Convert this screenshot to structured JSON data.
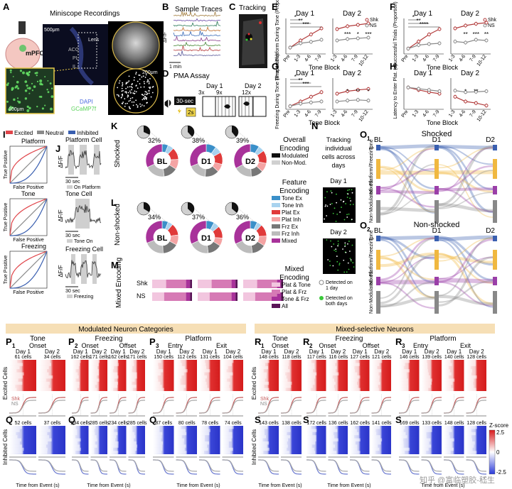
{
  "panel_A": {
    "letter": "A",
    "title": "Miniscope Recordings",
    "scale_top": "500μm",
    "scale_bottom": "100μm",
    "scale_right": "200μm",
    "mpfc": "mPFC",
    "lens": "Lens",
    "acc": "ACC",
    "pl": "PL",
    "il": "IL",
    "dapi": "DAPI",
    "gcamp": "GCaMP7f"
  },
  "panel_B": {
    "letter": "B",
    "title": "Sample Traces",
    "ylabel": "ΔF/F",
    "scale": "1 min",
    "trace_colors": [
      "#a07a3a",
      "#6b4aa8",
      "#2e7d5b",
      "#c06f2c",
      "#3b6cb7",
      "#8a3f8f",
      "#4a8a3a",
      "#b53a3a",
      "#5a5a9a"
    ]
  },
  "panel_C": {
    "letter": "C",
    "title": "Tracking"
  },
  "panel_D": {
    "letter": "D",
    "title": "PMA Assay",
    "day1": "Day 1",
    "day2": "Day 2",
    "sec30": "30-sec",
    "sec2": "2s",
    "rep1": "3x",
    "rep2": "9x",
    "rep3": "12x"
  },
  "line_panels": {
    "day1": "Day 1",
    "day2": "Day 2",
    "xlabel": "Tone Block",
    "d1_ticks": [
      "Pre",
      "1-3",
      "4-6",
      "7-9"
    ],
    "d2_ticks": [
      "1-3",
      "4-6",
      "7-9",
      "10-12"
    ],
    "legend_shk": "Shk",
    "legend_ns": "NS",
    "shk_color": "#b23a3a",
    "ns_color": "#8a8a8a",
    "E": {
      "letter": "E",
      "ylabel": "Time on Platform During Tone (Proportion)",
      "d1_shk": [
        0.18,
        0.38,
        0.55,
        0.72
      ],
      "d1_ns": [
        0.18,
        0.3,
        0.34,
        0.4
      ],
      "d2_shk": [
        0.7,
        0.78,
        0.82,
        0.86
      ],
      "d2_ns": [
        0.38,
        0.42,
        0.44,
        0.46
      ],
      "sig_d1": [
        "*",
        "**",
        "***"
      ],
      "sig_d2": [
        "***",
        "*",
        "***"
      ]
    },
    "F": {
      "letter": "F",
      "ylabel": "Successful Trials (Proportion)",
      "d1_shk": [
        0.15,
        0.35,
        0.55,
        0.7
      ],
      "d1_ns": [
        0.15,
        0.25,
        0.28,
        0.3
      ],
      "d2_shk": [
        0.72,
        0.8,
        0.85,
        0.88
      ],
      "d2_ns": [
        0.35,
        0.32,
        0.4,
        0.38
      ],
      "sig_d1": [
        "*",
        "**",
        "****"
      ],
      "sig_d2": [
        "**",
        "***",
        "**"
      ]
    },
    "G": {
      "letter": "G",
      "ylabel": "Freezing During Tone (Proportion)",
      "d1_shk": [
        0.1,
        0.25,
        0.4,
        0.55
      ],
      "d1_ns": [
        0.1,
        0.18,
        0.22,
        0.25
      ],
      "d2_shk": [
        0.5,
        0.58,
        0.62,
        0.65
      ],
      "d2_ns": [
        0.25,
        0.28,
        0.3,
        0.28
      ],
      "sig_d1": [
        "*",
        "**",
        "***"
      ],
      "sig_d2": [
        "*",
        "**",
        "*"
      ]
    },
    "H": {
      "letter": "H",
      "ylabel": "Latency to Enter Plat. (s)",
      "d1_shk": [
        0.7,
        0.62,
        0.55,
        0.5
      ],
      "d1_ns": [
        0.7,
        0.66,
        0.62,
        0.58
      ],
      "d2_shk": [
        0.4,
        0.25,
        0.2,
        0.12
      ],
      "d2_ns": [
        0.6,
        0.55,
        0.56,
        0.58
      ],
      "sig_d1": [],
      "sig_d2": [
        "*",
        "**"
      ]
    }
  },
  "panel_I": {
    "letter": "I",
    "legend": [
      "Excited",
      "Neutral",
      "Inhibited"
    ],
    "colors": [
      "#e0454a",
      "#8a8a8a",
      "#3a5fb0"
    ],
    "subtitles": [
      "Platform",
      "Tone",
      "Freezing"
    ],
    "ylabel": "True Positive",
    "xlabel": "False Positive"
  },
  "panel_J": {
    "letter": "J",
    "titles": [
      "Platform Cell",
      "Tone Cell",
      "Freezing Cell"
    ],
    "ylabel": "ΔF/F",
    "scale": "30 sec",
    "legend": [
      "On Platform",
      "Tone On",
      "Freezing"
    ]
  },
  "panel_K": {
    "letter": "K",
    "row_label": "Shocked",
    "pcts": [
      "32%",
      "38%",
      "39%"
    ],
    "days": [
      "BL",
      "D1",
      "D2"
    ]
  },
  "panel_L": {
    "letter": "L",
    "row_label": "Non-shocked",
    "pcts": [
      "34%",
      "37%",
      "36%"
    ],
    "days": [
      "BL",
      "D1",
      "D2"
    ]
  },
  "legend_overall": {
    "title": "Overall Encoding",
    "items": [
      "Modulated",
      "Non-Mod."
    ],
    "colors": [
      "#111111",
      "#d0d0d0"
    ]
  },
  "legend_feature": {
    "title": "Feature Encoding",
    "items": [
      "Tone Ex",
      "Tone Inh",
      "Plat Ex",
      "Plat Inh",
      "Frz Ex",
      "Frz Inh",
      "Mixed"
    ],
    "colors": [
      "#3a8fc9",
      "#a8d3ef",
      "#e03a3a",
      "#f4a3a3",
      "#777777",
      "#bcbcbc",
      "#a8329a"
    ]
  },
  "panel_M": {
    "letter": "M",
    "ylabel": "Mixed Encoding",
    "rows": [
      "Shk",
      "NS"
    ],
    "legend_title": "Mixed Encoding",
    "items": [
      "Plat & Tone",
      "Plat & Frz",
      "Tone & Frz",
      "All"
    ],
    "colors": [
      "#f2c6df",
      "#d67ab5",
      "#a8329a",
      "#5a1457"
    ]
  },
  "panel_N": {
    "letter": "N",
    "title": "Tracking individual cells across days",
    "day1": "Day 1",
    "day2": "Day 2",
    "legend": [
      "Detected on 1 day",
      "Detected on both days"
    ]
  },
  "panel_O": {
    "letter1": "O",
    "sub1": "1",
    "letter2": "O",
    "sub2": "2",
    "title1": "Shocked",
    "title2": "Non-shocked",
    "days": [
      "BL",
      "D1",
      "D2"
    ],
    "labels": [
      "Tone",
      "Platform/Freezing",
      "Mixed",
      "Non-Modulated"
    ],
    "colors": [
      "#3a5fb0",
      "#f0b840",
      "#9a3fa8",
      "#888888"
    ]
  },
  "section_left": "Modulated Neuron Categories",
  "section_right": "Mixed-selective Neurons",
  "heat": {
    "day1": "Day 1",
    "day2": "Day 2",
    "xlabel": "Time from Event (s)",
    "excited_label": "Excited Cells",
    "inhibited_label": "Inhibited Cells",
    "shk": "Shk",
    "ns": "NS",
    "colorbar_title": "Z-score",
    "colorbar_max": "2.5",
    "colorbar_zero": "0",
    "colorbar_min": "-2.5",
    "groups": [
      {
        "letter": "P",
        "sub": "1",
        "title": "Tone",
        "sub_titles": [
          "Onset"
        ],
        "cells": [
          "61 cells",
          "34 cells"
        ],
        "qletter": "Q",
        "qcells": [
          "52 cells",
          "37 cells"
        ]
      },
      {
        "letter": "P",
        "sub": "2",
        "title": "Freezing",
        "sub_titles": [
          "Onset",
          "Offset"
        ],
        "cells": [
          "162 cells",
          "171 cells",
          "162 cells",
          "171 cells"
        ],
        "qletter": "Q",
        "qcells": [
          "234 cells",
          "285 cells",
          "234 cells",
          "285 cells"
        ]
      },
      {
        "letter": "P",
        "sub": "3",
        "title": "Platform",
        "sub_titles": [
          "Entry",
          "Exit"
        ],
        "cells": [
          "150 cells",
          "112 cells",
          "131 cells",
          "104 cells"
        ],
        "qletter": "Q",
        "qcells": [
          "87 cells",
          "80 cells",
          "78 cells",
          "74 cells"
        ]
      },
      {
        "letter": "R",
        "sub": "1",
        "title": "Tone",
        "sub_titles": [
          "Onset"
        ],
        "cells": [
          "148 cells",
          "118 cells"
        ],
        "qletter": "S",
        "qcells": [
          "143 cells",
          "138 cells"
        ]
      },
      {
        "letter": "R",
        "sub": "2",
        "title": "Freezing",
        "sub_titles": [
          "Onset",
          "Offset"
        ],
        "cells": [
          "117 cells",
          "116 cells",
          "127 cells",
          "121 cells"
        ],
        "qletter": "S",
        "qcells": [
          "172 cells",
          "136 cells",
          "162 cells",
          "141 cells"
        ]
      },
      {
        "letter": "R",
        "sub": "3",
        "title": "Platform",
        "sub_titles": [
          "Entry",
          "Exit"
        ],
        "cells": [
          "146 cells",
          "139 cells",
          "140 cells",
          "128 cells"
        ],
        "qletter": "S",
        "qcells": [
          "169 cells",
          "133 cells",
          "148 cells",
          "128 cells"
        ]
      }
    ]
  },
  "watermark": "知乎 @富临塑胶-嵇生"
}
